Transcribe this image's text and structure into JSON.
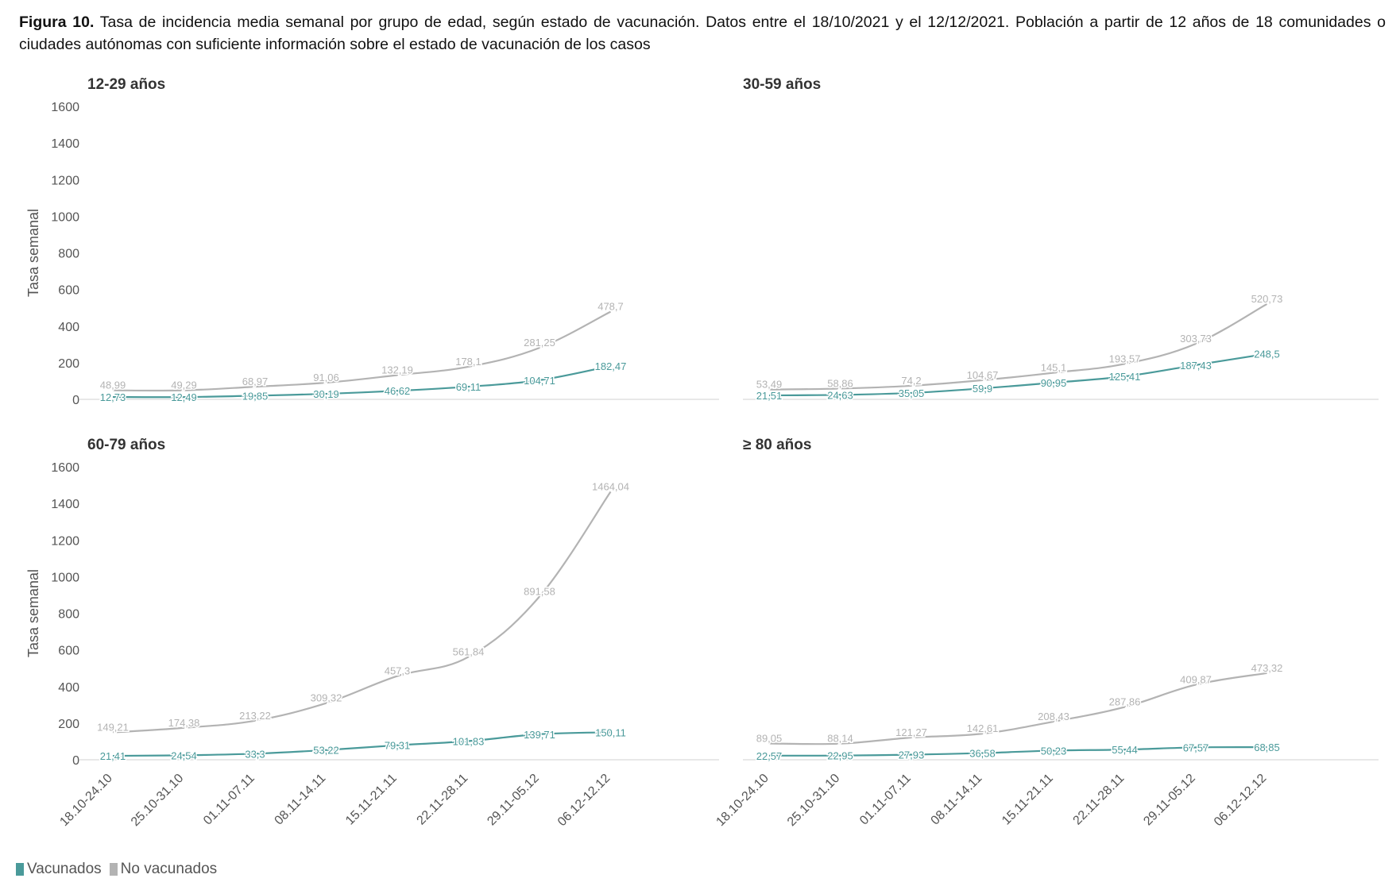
{
  "caption": {
    "figure_label": "Figura 10.",
    "text": "Tasa de incidencia media semanal por grupo de edad, según estado de vacunación. Datos entre el 18/10/2021 y el 12/12/2021. Población a partir de 12 años de 18 comunidades o ciudades autónomas con suficiente información sobre el estado de vacunación de los casos"
  },
  "legend": {
    "items": [
      {
        "name": "Vacunados",
        "color": "#4a9a9a"
      },
      {
        "name": "No vacunados",
        "color": "#b3b3b3"
      }
    ]
  },
  "colors": {
    "vacunados": "#4a9a9a",
    "no_vacunados": "#b3b3b3",
    "axis_text": "#555555",
    "title_text": "#333333"
  },
  "chart_data": [
    {
      "type": "line",
      "title": "12-29 años",
      "ylabel": "Tasa semanal",
      "ylim": [
        0,
        1600
      ],
      "yticks": [
        0,
        200,
        400,
        600,
        800,
        1000,
        1200,
        1400,
        1600
      ],
      "show_y_axis": true,
      "show_x_labels": false,
      "categories": [
        "18.10-24.10",
        "25.10-31.10",
        "01.11-07.11",
        "08.11-14.11",
        "15.11-21.11",
        "22.11-28.11",
        "29.11-05.12",
        "06.12-12.12"
      ],
      "series": [
        {
          "name": "No vacunados",
          "values": [
            48.99,
            49.29,
            68.97,
            91.06,
            132.19,
            178.1,
            281.25,
            478.7
          ],
          "labels": [
            "48,99",
            "49,29",
            "68,97",
            "91,06",
            "132,19",
            "178,1",
            "281,25",
            "478,7"
          ]
        },
        {
          "name": "Vacunados",
          "values": [
            12.73,
            12.49,
            19.85,
            30.19,
            46.62,
            69.11,
            104.71,
            182.47
          ],
          "labels": [
            "12,73",
            "12,49",
            "19,85",
            "30,19",
            "46,62",
            "69,11",
            "104,71",
            "182,47"
          ]
        }
      ]
    },
    {
      "type": "line",
      "title": "30-59 años",
      "ylabel": "",
      "ylim": [
        0,
        1600
      ],
      "yticks": [
        0,
        200,
        400,
        600,
        800,
        1000,
        1200,
        1400,
        1600
      ],
      "show_y_axis": false,
      "show_x_labels": false,
      "categories": [
        "18.10-24.10",
        "25.10-31.10",
        "01.11-07.11",
        "08.11-14.11",
        "15.11-21.11",
        "22.11-28.11",
        "29.11-05.12",
        "06.12-12.12"
      ],
      "series": [
        {
          "name": "No vacunados",
          "values": [
            53.49,
            58.86,
            74.2,
            104.67,
            145.1,
            193.57,
            303.73,
            520.73
          ],
          "labels": [
            "53,49",
            "58,86",
            "74,2",
            "104,67",
            "145,1",
            "193,57",
            "303,73",
            "520,73"
          ]
        },
        {
          "name": "Vacunados",
          "values": [
            21.51,
            24.63,
            35.05,
            59.9,
            90.95,
            125.41,
            187.43,
            248.5
          ],
          "labels": [
            "21,51",
            "24,63",
            "35,05",
            "59,9",
            "90,95",
            "125,41",
            "187,43",
            "248,5"
          ]
        }
      ]
    },
    {
      "type": "line",
      "title": "60-79 años",
      "ylabel": "Tasa semanal",
      "ylim": [
        0,
        1600
      ],
      "yticks": [
        0,
        200,
        400,
        600,
        800,
        1000,
        1200,
        1400,
        1600
      ],
      "show_y_axis": true,
      "show_x_labels": true,
      "categories": [
        "18.10-24.10",
        "25.10-31.10",
        "01.11-07.11",
        "08.11-14.11",
        "15.11-21.11",
        "22.11-28.11",
        "29.11-05.12",
        "06.12-12.12"
      ],
      "series": [
        {
          "name": "No vacunados",
          "values": [
            149.21,
            174.38,
            213.22,
            309.32,
            457.3,
            561.84,
            891.58,
            1464.04
          ],
          "labels": [
            "149,21",
            "174,38",
            "213,22",
            "309,32",
            "457,3",
            "561,84",
            "891,58",
            "1464,04"
          ]
        },
        {
          "name": "Vacunados",
          "values": [
            21.41,
            24.54,
            33.3,
            53.22,
            79.31,
            101.83,
            139.71,
            150.11
          ],
          "labels": [
            "21,41",
            "24,54",
            "33,3",
            "53,22",
            "79,31",
            "101,83",
            "139,71",
            "150,11"
          ]
        }
      ]
    },
    {
      "type": "line",
      "title": "≥ 80 años",
      "ylabel": "",
      "ylim": [
        0,
        1600
      ],
      "yticks": [
        0,
        200,
        400,
        600,
        800,
        1000,
        1200,
        1400,
        1600
      ],
      "show_y_axis": false,
      "show_x_labels": true,
      "categories": [
        "18.10-24.10",
        "25.10-31.10",
        "01.11-07.11",
        "08.11-14.11",
        "15.11-21.11",
        "22.11-28.11",
        "29.11-05.12",
        "06.12-12.12"
      ],
      "series": [
        {
          "name": "No vacunados",
          "values": [
            89.05,
            88.14,
            121.27,
            142.61,
            208.43,
            287.86,
            409.87,
            473.32
          ],
          "labels": [
            "89,05",
            "88,14",
            "121,27",
            "142,61",
            "208,43",
            "287,86",
            "409,87",
            "473,32"
          ]
        },
        {
          "name": "Vacunados",
          "values": [
            22.57,
            22.95,
            27.93,
            36.58,
            50.23,
            55.44,
            67.57,
            68.85
          ],
          "labels": [
            "22,57",
            "22,95",
            "27,93",
            "36,58",
            "50,23",
            "55,44",
            "67,57",
            "68,85"
          ]
        }
      ]
    }
  ]
}
